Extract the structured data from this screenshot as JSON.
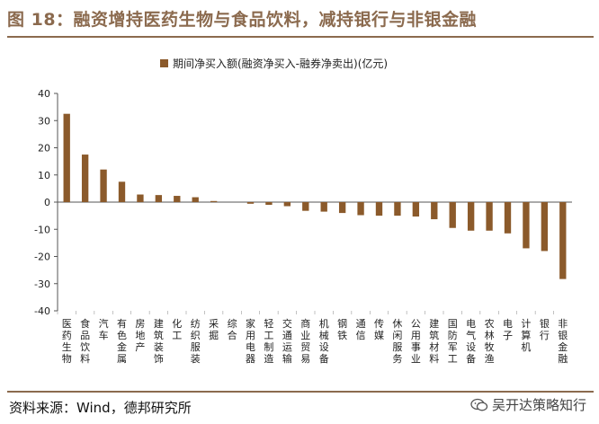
{
  "header": {
    "title": "图 18：融资增持医药生物与食品饮料，减持银行与非银金融"
  },
  "footer": {
    "source": "资料来源：Wind，德邦研究所"
  },
  "watermark": {
    "text": "吴开达策略知行",
    "icon": "wechat-icon"
  },
  "colors": {
    "accent": "#8B6A4E",
    "bar": "#8B5A2B"
  },
  "chart_data": {
    "type": "bar",
    "legend": "期间净买入额(融资净买入-融券净卖出)(亿元)",
    "legend_position": "top",
    "grid": false,
    "ylim": [
      -40,
      40
    ],
    "yticks": [
      -40,
      -30,
      -20,
      -10,
      0,
      10,
      20,
      30,
      40
    ],
    "categories": [
      "医药生物",
      "食品饮料",
      "汽车",
      "有色金属",
      "房地产",
      "建筑装饰",
      "化工",
      "纺织服装",
      "采掘",
      "综合",
      "家用电器",
      "轻工制造",
      "交通运输",
      "商业贸易",
      "机械设备",
      "钢铁",
      "通信",
      "传媒",
      "休闲服务",
      "公用事业",
      "建筑材料",
      "国防军工",
      "电气设备",
      "农林牧渔",
      "电子",
      "计算机",
      "银行",
      "非银金融"
    ],
    "series": [
      {
        "name": "期间净买入额(融资净买入-融券净卖出)(亿元)",
        "values": [
          32.5,
          17.5,
          12,
          7.5,
          2.8,
          2.6,
          2.3,
          1.8,
          0.4,
          0,
          -0.6,
          -1,
          -1.5,
          -3.2,
          -3.5,
          -4,
          -4.8,
          -5,
          -5,
          -5.3,
          -6.3,
          -9.5,
          -10.5,
          -10.5,
          -11.5,
          -17,
          -18,
          -28.3
        ]
      }
    ]
  }
}
